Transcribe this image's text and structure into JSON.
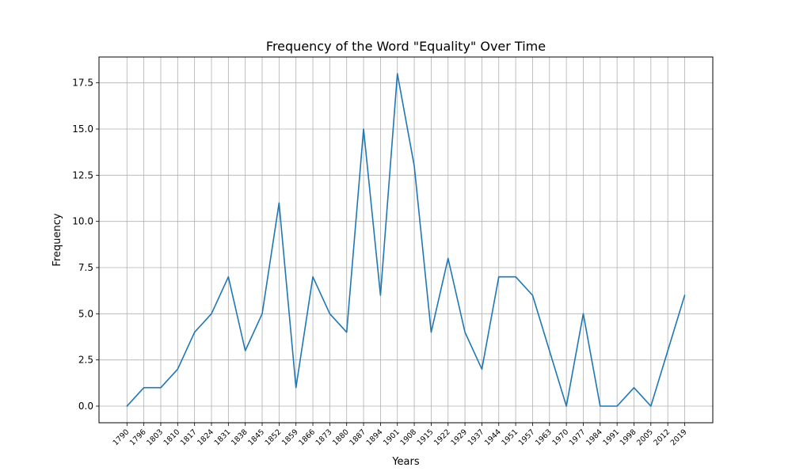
{
  "chart_data": {
    "type": "line",
    "title": "Frequency of the Word \"Equality\" Over Time",
    "xlabel": "Years",
    "ylabel": "Frequency",
    "ylim": [
      -0.9,
      18.9
    ],
    "yticks": [
      "0.0",
      "2.5",
      "5.0",
      "7.5",
      "10.0",
      "12.5",
      "15.0",
      "17.5"
    ],
    "grid": true,
    "categories": [
      "1790",
      "1796",
      "1803",
      "1810",
      "1817",
      "1824",
      "1831",
      "1838",
      "1845",
      "1852",
      "1859",
      "1866",
      "1873",
      "1880",
      "1887",
      "1894",
      "1901",
      "1908",
      "1915",
      "1922",
      "1929",
      "1937",
      "1944",
      "1951",
      "1957",
      "1963",
      "1970",
      "1977",
      "1984",
      "1991",
      "1998",
      "2005",
      "2012",
      "2019"
    ],
    "series": [
      {
        "color": "#1f77b4",
        "values": [
          0,
          1,
          1,
          2,
          4,
          5,
          7,
          3,
          5,
          11,
          1,
          7,
          5,
          4,
          15,
          6,
          18,
          13,
          4,
          8,
          4,
          2,
          7,
          7,
          6,
          3,
          0,
          5,
          0,
          0,
          1,
          0,
          3,
          6
        ]
      }
    ]
  }
}
